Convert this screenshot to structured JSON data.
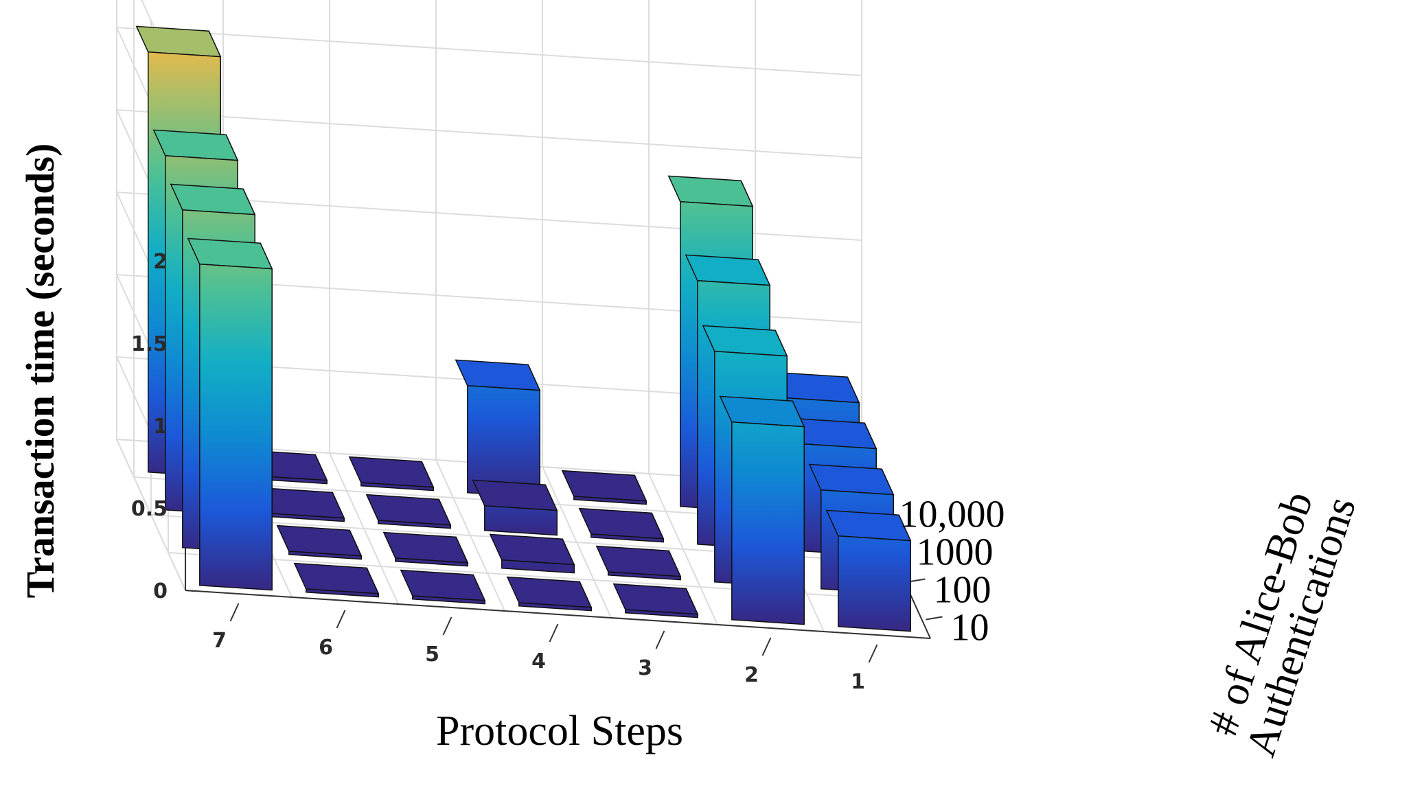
{
  "chart_data": {
    "type": "bar3d",
    "ylabel": "Transaction time (seconds)",
    "xlabel": "Protocol Steps",
    "zlabel_lines": [
      "# of Alice-Bob",
      "Authentications"
    ],
    "x_categories": [
      "7",
      "6",
      "5",
      "4",
      "3",
      "2",
      "1"
    ],
    "depth_categories": [
      "10",
      "100",
      "1000",
      "10,000"
    ],
    "yticks": [
      "0",
      "0.5",
      "1",
      "1.5",
      "2"
    ],
    "ylim": [
      0,
      3
    ],
    "grid": true,
    "colormap": "parula",
    "series": [
      {
        "name": "10",
        "values": [
          1.95,
          0.02,
          0.02,
          0.02,
          0.02,
          1.2,
          0.55
        ]
      },
      {
        "name": "100",
        "values": [
          2.05,
          0.02,
          0.02,
          0.05,
          0.02,
          1.4,
          0.6
        ]
      },
      {
        "name": "1000",
        "values": [
          2.15,
          0.02,
          0.02,
          0.15,
          0.02,
          1.6,
          0.65
        ]
      },
      {
        "name": "10,000",
        "values": [
          2.55,
          0.02,
          0.02,
          0.65,
          0.02,
          1.85,
          0.7
        ]
      }
    ]
  }
}
